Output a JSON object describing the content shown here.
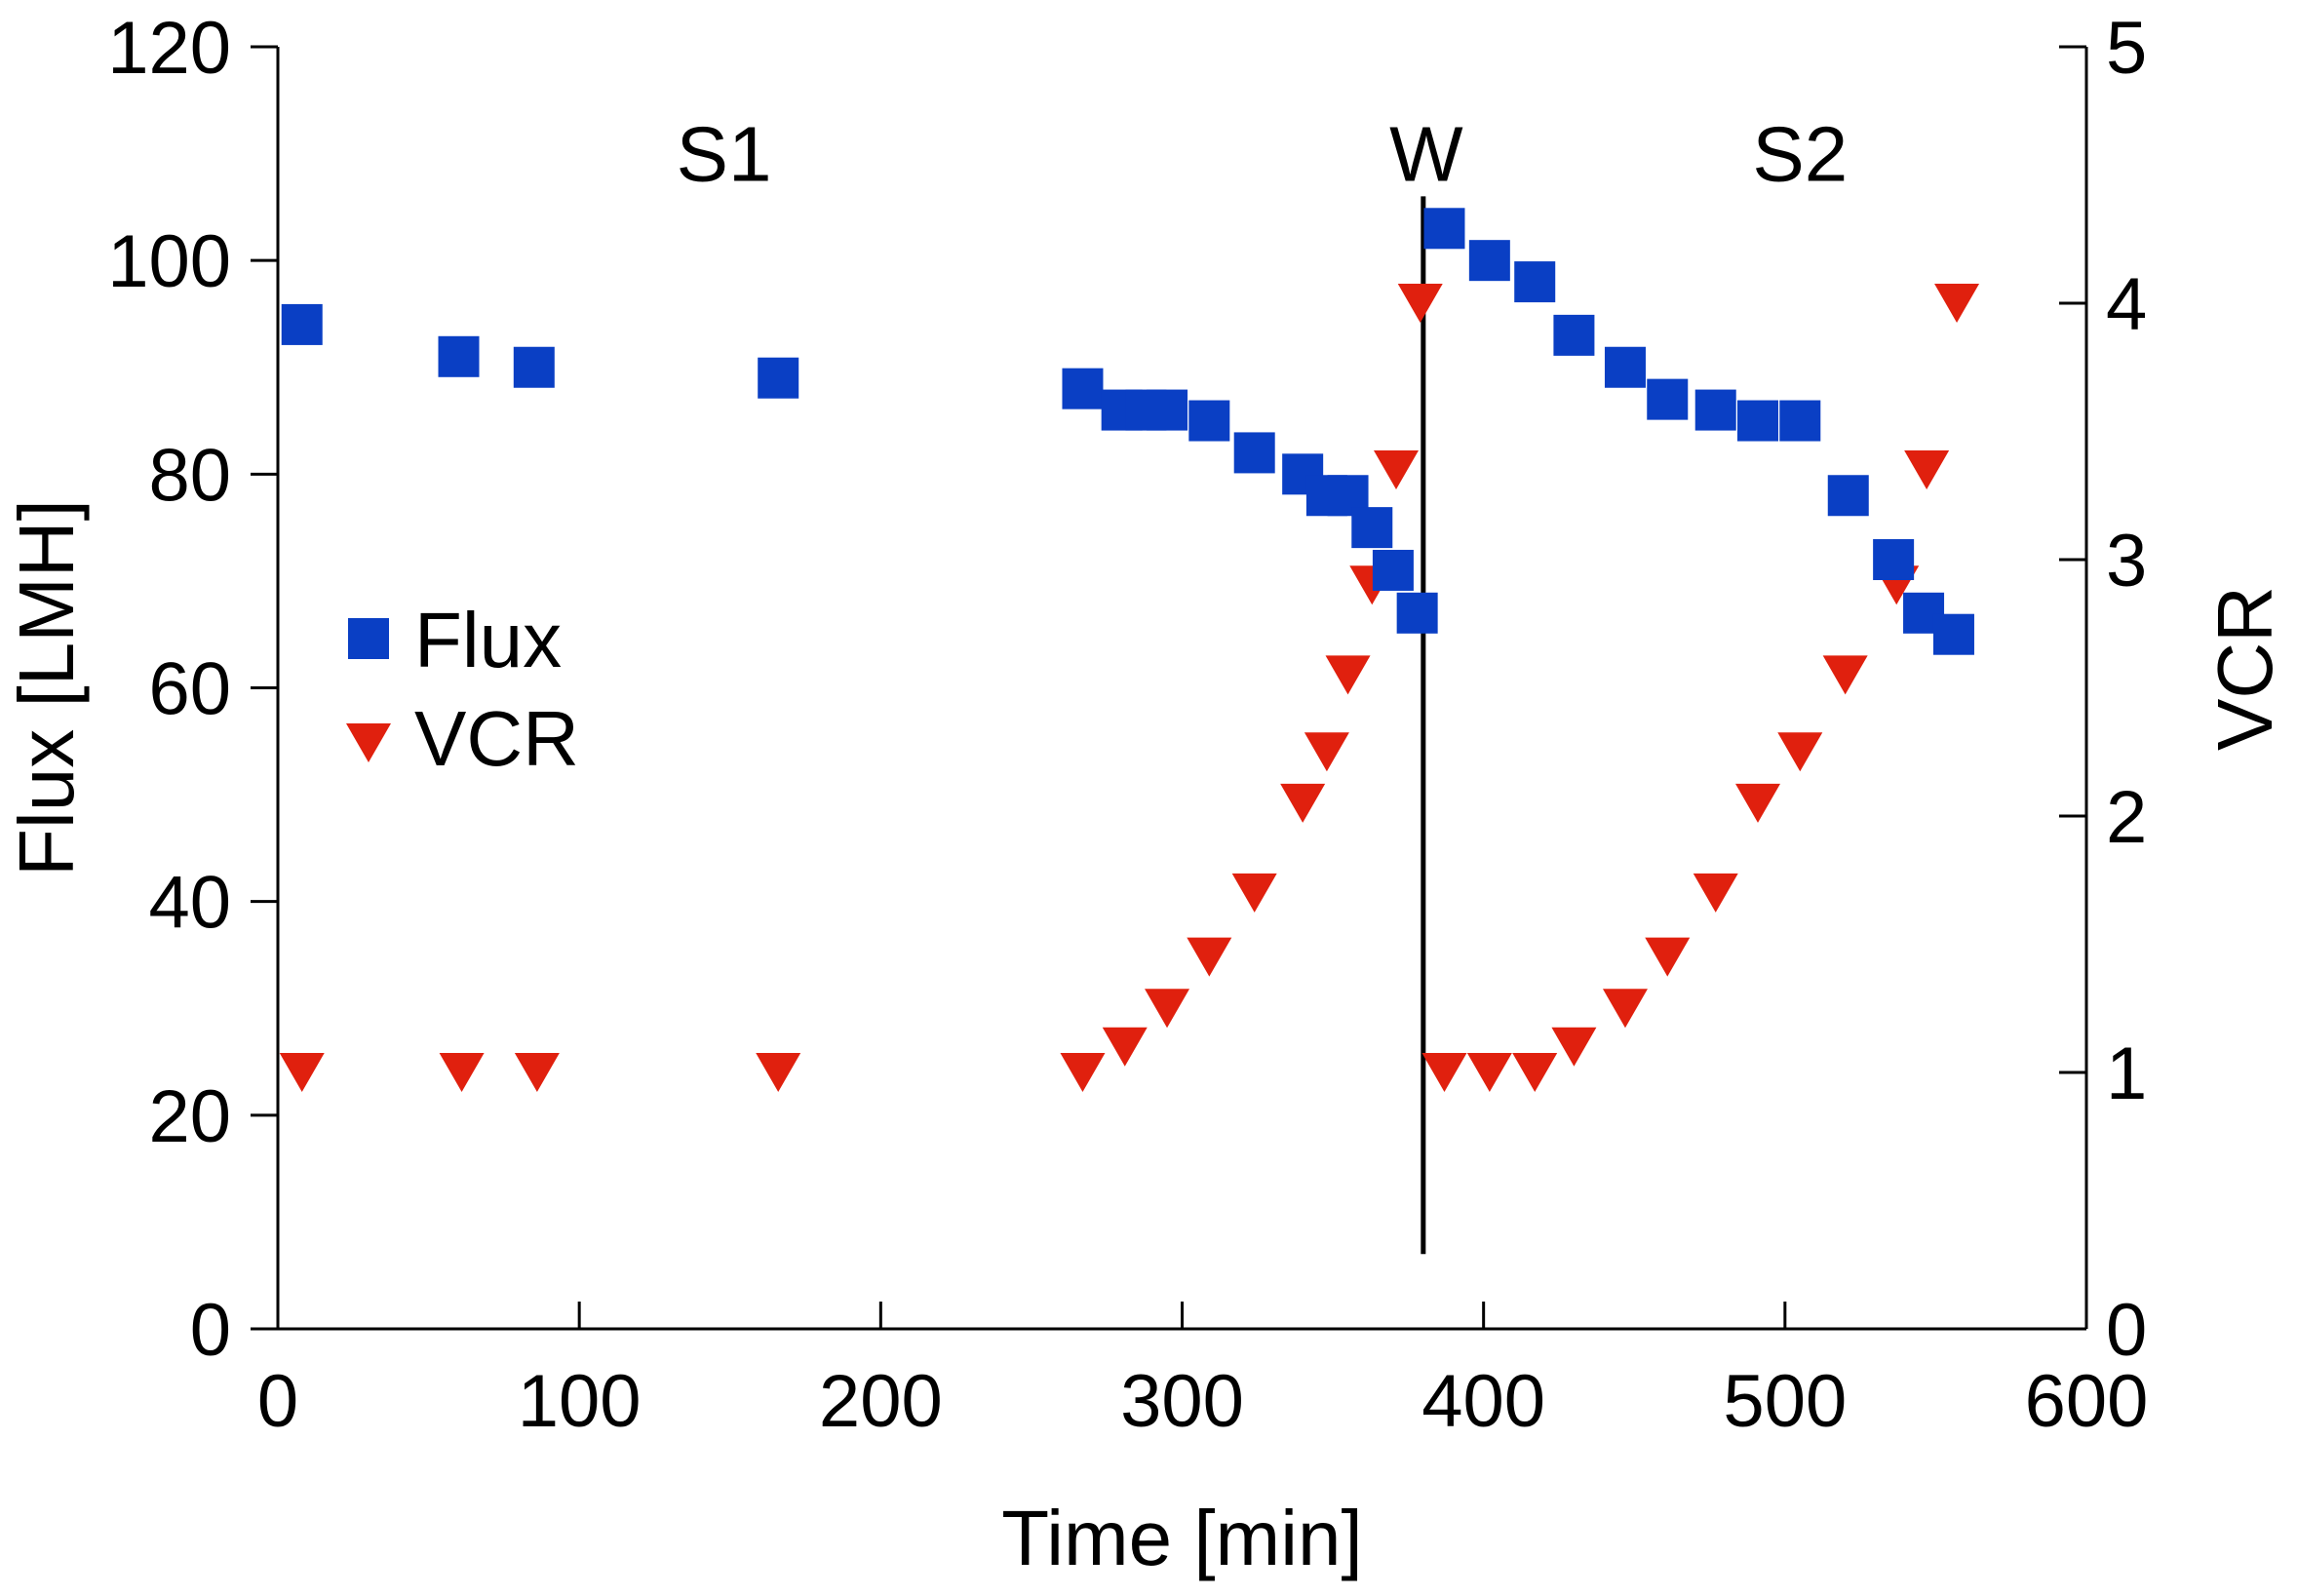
{
  "chart_data": {
    "type": "scatter",
    "title": "",
    "xlabel": "Time [min]",
    "ylabel": "Flux [LMH]",
    "y2label": "VCR",
    "xlim": [
      0,
      600
    ],
    "ylim": [
      0,
      120
    ],
    "y2lim": [
      0,
      5
    ],
    "xticks": [
      0,
      100,
      200,
      300,
      400,
      500,
      600
    ],
    "yticks": [
      0,
      20,
      40,
      60,
      80,
      100,
      120
    ],
    "y2ticks": [
      0,
      1,
      2,
      3,
      4,
      5
    ],
    "grid": false,
    "legend_position": "left-middle",
    "colors": {
      "flux": "#0a3fc4",
      "vcr": "#e0200e",
      "axis": "#000000"
    },
    "annotations": [
      {
        "text": "S1",
        "x": 148,
        "y": 110
      },
      {
        "text": "W",
        "x": 381,
        "y": 110
      },
      {
        "text": "S2",
        "x": 505,
        "y": 110
      }
    ],
    "vertical_line": {
      "x": 380,
      "y_from": 7,
      "y_to": 106
    },
    "series": [
      {
        "name": "Flux",
        "axis": "left",
        "marker": "square",
        "x": [
          8,
          60,
          85,
          166,
          267,
          280,
          288,
          295,
          309,
          324,
          340,
          348,
          355,
          363,
          370,
          378,
          387,
          402,
          417,
          430,
          447,
          461,
          477,
          491,
          505,
          521,
          536,
          546,
          556
        ],
        "y": [
          94,
          91,
          90,
          89,
          88,
          86,
          86,
          86,
          85,
          82,
          80,
          78,
          78,
          75,
          71,
          67,
          103,
          100,
          98,
          93,
          90,
          87,
          86,
          85,
          85,
          78,
          72,
          67,
          65
        ]
      },
      {
        "name": "VCR",
        "axis": "right",
        "marker": "triangle-down",
        "x": [
          8,
          61,
          86,
          166,
          267,
          281,
          295,
          309,
          324,
          340,
          348,
          355,
          363,
          371,
          379,
          387,
          402,
          417,
          430,
          447,
          461,
          477,
          491,
          505,
          520,
          537,
          547,
          557
        ],
        "y": [
          1.0,
          1.0,
          1.0,
          1.0,
          1.0,
          1.1,
          1.25,
          1.45,
          1.7,
          2.05,
          2.25,
          2.55,
          2.9,
          3.35,
          4.0,
          1.0,
          1.0,
          1.0,
          1.1,
          1.25,
          1.45,
          1.7,
          2.05,
          2.25,
          2.55,
          2.9,
          3.35,
          4.0
        ]
      }
    ]
  }
}
